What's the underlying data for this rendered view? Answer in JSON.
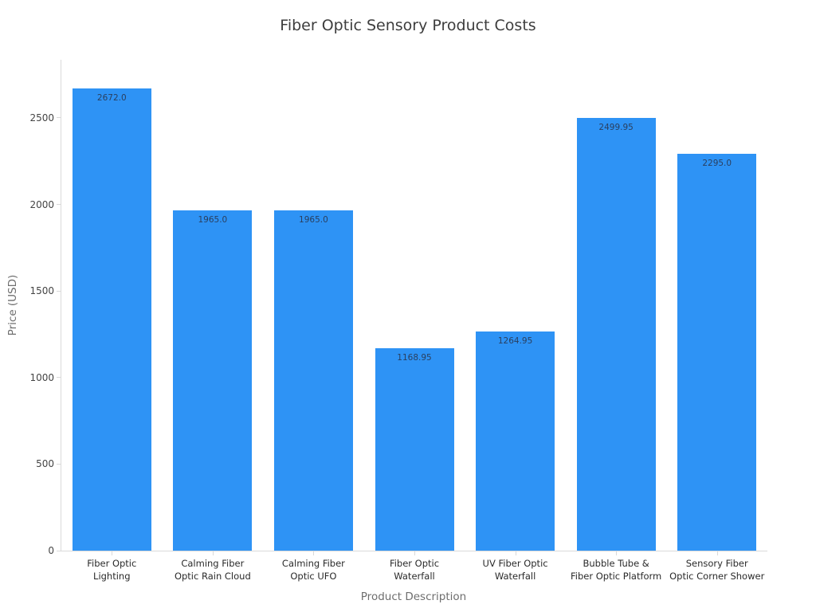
{
  "chart_data": {
    "type": "bar",
    "title": "Fiber Optic Sensory Product Costs",
    "xlabel": "Product Description",
    "ylabel": "Price (USD)",
    "categories": [
      "Fiber Optic\nLighting",
      "Calming Fiber\nOptic Rain Cloud",
      "Calming Fiber\nOptic UFO",
      "Fiber Optic\nWaterfall",
      "UV Fiber Optic\nWaterfall",
      "Bubble Tube &\nFiber Optic Platform",
      "Sensory Fiber\nOptic Corner Shower"
    ],
    "values": [
      2672.0,
      1965.0,
      1965.0,
      1168.95,
      1264.95,
      2499.95,
      2295.0
    ],
    "bar_labels": [
      "2672.0",
      "1965.0",
      "1965.0",
      "1168.95",
      "1264.95",
      "2499.95",
      "2295.0"
    ],
    "yticks": [
      0,
      500,
      1000,
      1500,
      2000,
      2500
    ],
    "ytick_labels": [
      "0",
      "500",
      "1000",
      "1500",
      "2000",
      "2500"
    ],
    "ylim": [
      0,
      2836
    ],
    "grid": false,
    "legend_position": "none",
    "colors": {
      "bar": "#2e93f5",
      "bar_label_text": "#2a3f5f",
      "axis_line": "#d9d9d9",
      "tick_label": "#444444",
      "axis_title": "#6e6e6e",
      "title": "#3d3d3d",
      "background": "#ffffff"
    }
  }
}
